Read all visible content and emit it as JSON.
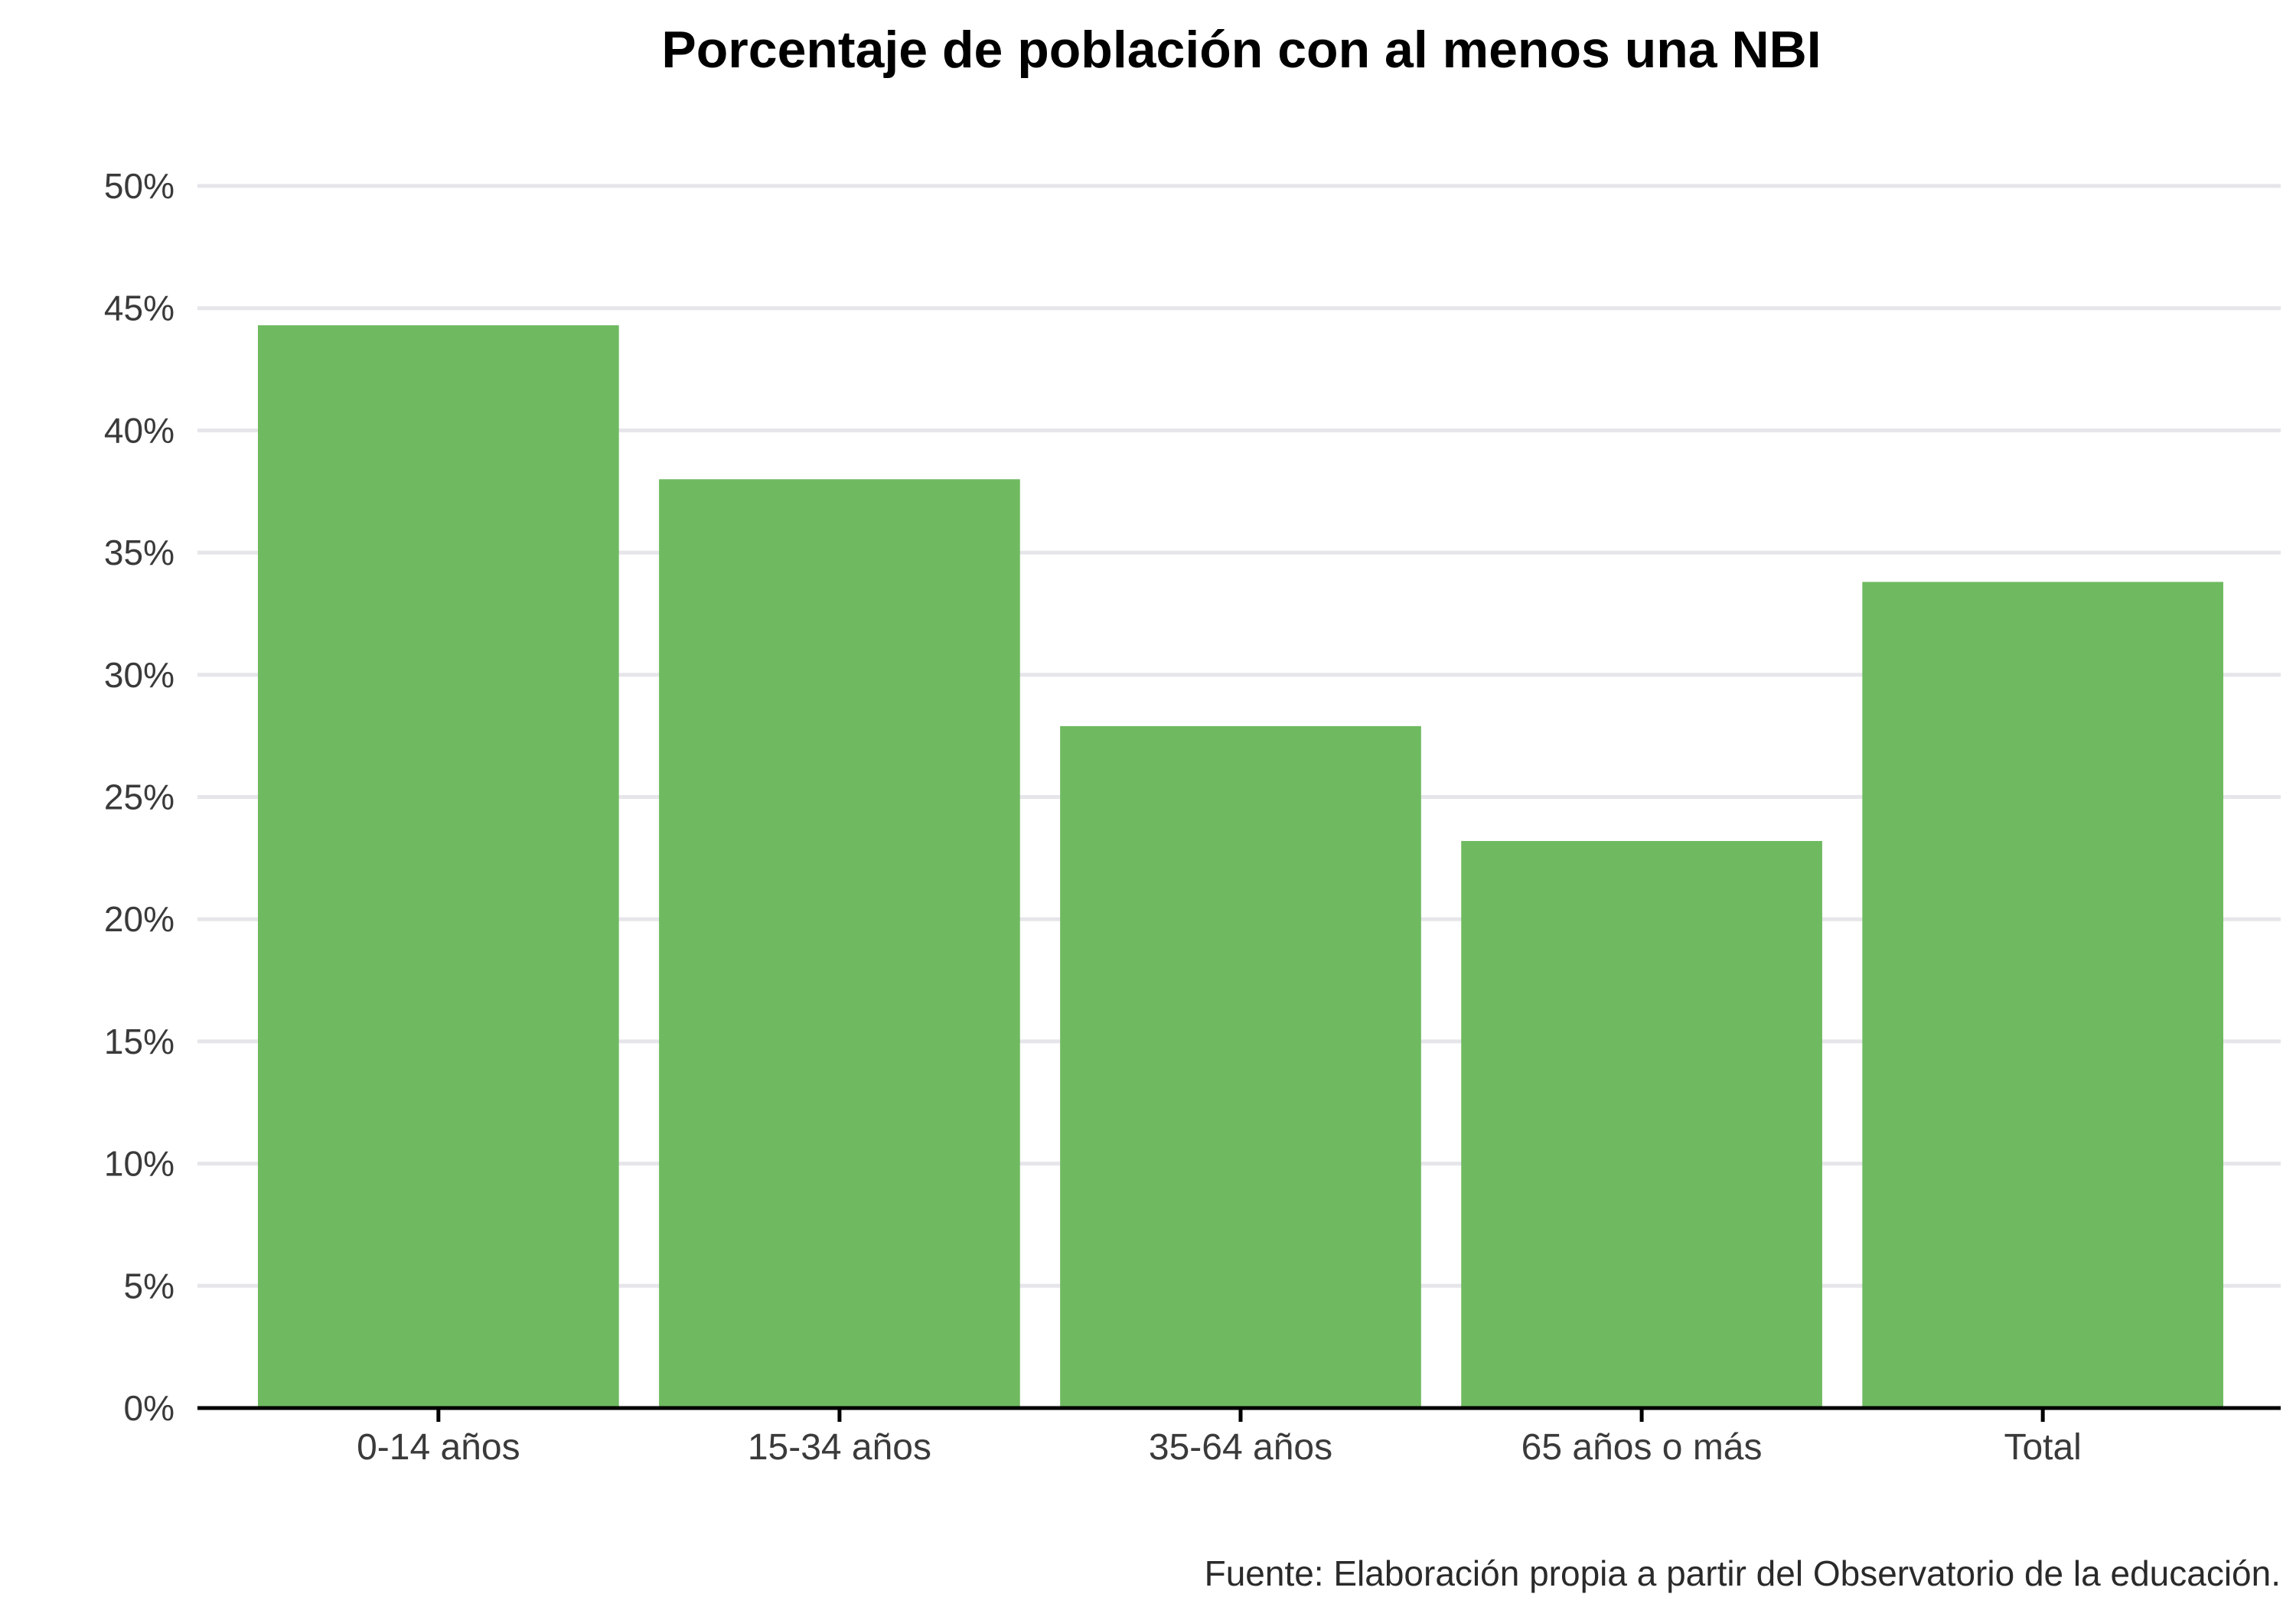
{
  "chart_data": {
    "type": "bar",
    "title": "Porcentaje de población con al menos una NBI",
    "xlabel": "",
    "ylabel": "",
    "categories": [
      "0-14 años",
      "15-34 años",
      "35-64 años",
      "65 años o más",
      "Total"
    ],
    "values": [
      44.3,
      38.0,
      27.9,
      23.2,
      33.8
    ],
    "ylim": [
      0,
      50
    ],
    "yticks": [
      0,
      5,
      10,
      15,
      20,
      25,
      30,
      35,
      40,
      45,
      50
    ],
    "ytick_labels": [
      "0%",
      "5%",
      "10%",
      "15%",
      "20%",
      "25%",
      "30%",
      "35%",
      "40%",
      "45%",
      "50%"
    ],
    "grid": true,
    "legend": "none",
    "bar_color": "#6fba60",
    "caption": "Fuente: Elaboración propia a partir del Observatorio de la educación."
  }
}
